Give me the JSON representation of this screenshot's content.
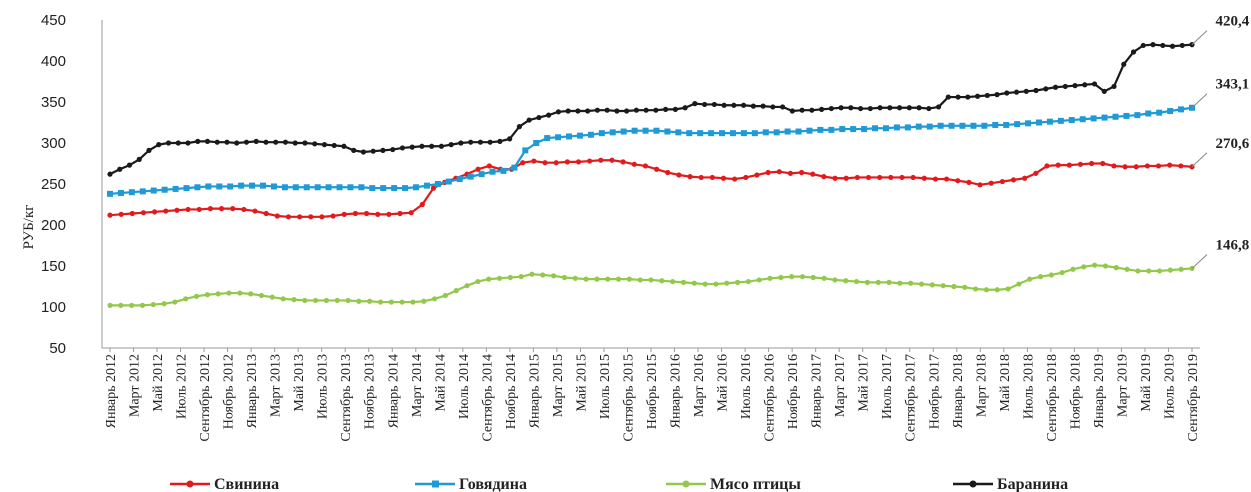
{
  "chart_data": {
    "type": "line",
    "ylabel": "РУБ/кг",
    "ylim": [
      50,
      450
    ],
    "yticks": [
      50,
      100,
      150,
      200,
      250,
      300,
      350,
      400,
      450
    ],
    "grid": false,
    "legend_position": "bottom",
    "x_start": "2012-01",
    "x_end": "2019-09",
    "xtick_labels": [
      "Январь 2012",
      "Март 2012",
      "Май 2012",
      "Июль 2012",
      "Сентябрь 2012",
      "Ноябрь 2012",
      "Январь 2013",
      "Март 2013",
      "Май 2013",
      "Июль 2013",
      "Сентябрь 2013",
      "Ноябрь 2013",
      "Январь 2014",
      "Март 2014",
      "Май 2014",
      "Июль 2014",
      "Сентябрь 2014",
      "Ноябрь 2014",
      "Январь 2015",
      "Март 2015",
      "Май 2015",
      "Июль 2015",
      "Сентябрь 2015",
      "Ноябрь 2015",
      "Январь 2016",
      "Март 2016",
      "Май 2016",
      "Июль 2016",
      "Сентябрь 2016",
      "Ноябрь 2016",
      "Январь 2017",
      "Март 2017",
      "Май 2017",
      "Июль 2017",
      "Сентябрь 2017",
      "Ноябрь 2017",
      "Январь 2018",
      "Март 2018",
      "Май 2018",
      "Июль 2018",
      "Сентябрь 2018",
      "Ноябрь 2018",
      "Январь 2019",
      "Март 2019",
      "Май 2019",
      "Июль 2019",
      "Сентябрь 2019"
    ],
    "series": [
      {
        "name": "Свинина",
        "color": "#e31a1c",
        "marker": "circle",
        "end_label": "270,6 ₽",
        "values": [
          212,
          213,
          214,
          215,
          216,
          217,
          218,
          219,
          219,
          220,
          220,
          220,
          219,
          217,
          214,
          211,
          210,
          210,
          210,
          210,
          211,
          213,
          214,
          214,
          213,
          213,
          214,
          215,
          225,
          245,
          252,
          257,
          262,
          268,
          272,
          268,
          268,
          276,
          278,
          276,
          276,
          277,
          277,
          278,
          279,
          279,
          277,
          274,
          272,
          268,
          264,
          261,
          259,
          258,
          258,
          257,
          256,
          258,
          261,
          264,
          265,
          263,
          264,
          262,
          259,
          257,
          257,
          258,
          258,
          258,
          258,
          258,
          258,
          257,
          256,
          256,
          254,
          252,
          249,
          251,
          253,
          255,
          257,
          263,
          272,
          273,
          273,
          274,
          275,
          275,
          272,
          271,
          271,
          272,
          272,
          273,
          272,
          271
        ]
      },
      {
        "name": "Говядина",
        "color": "#1f9ad6",
        "marker": "square",
        "end_label": "343,1 ₽",
        "values": [
          238,
          239,
          240,
          241,
          242,
          243,
          244,
          245,
          246,
          247,
          247,
          247,
          248,
          248,
          248,
          247,
          246,
          246,
          246,
          246,
          246,
          246,
          246,
          246,
          245,
          245,
          245,
          245,
          246,
          248,
          250,
          253,
          256,
          259,
          262,
          265,
          266,
          270,
          291,
          300,
          306,
          307,
          308,
          309,
          310,
          312,
          313,
          314,
          315,
          315,
          315,
          314,
          313,
          312,
          312,
          312,
          312,
          312,
          312,
          312,
          313,
          313,
          314,
          314,
          315,
          316,
          316,
          317,
          317,
          317,
          318,
          318,
          319,
          319,
          320,
          320,
          321,
          321,
          321,
          321,
          321,
          322,
          322,
          323,
          324,
          325,
          326,
          327,
          328,
          329,
          330,
          331,
          332,
          333,
          334,
          336,
          337,
          339,
          341,
          343
        ]
      },
      {
        "name": "Мясо птицы",
        "color": "#92c94a",
        "marker": "circle",
        "end_label": "146,8 ₽",
        "values": [
          102,
          102,
          102,
          102,
          103,
          104,
          106,
          110,
          113,
          115,
          116,
          117,
          117,
          116,
          114,
          112,
          110,
          109,
          108,
          108,
          108,
          108,
          108,
          107,
          107,
          106,
          106,
          106,
          106,
          107,
          110,
          114,
          120,
          126,
          131,
          134,
          135,
          136,
          137,
          140,
          139,
          138,
          136,
          135,
          134,
          134,
          134,
          134,
          134,
          133,
          133,
          132,
          131,
          130,
          129,
          128,
          128,
          129,
          130,
          131,
          133,
          135,
          136,
          137,
          137,
          136,
          135,
          133,
          132,
          131,
          130,
          130,
          130,
          129,
          129,
          128,
          127,
          126,
          125,
          124,
          122,
          121,
          121,
          122,
          128,
          134,
          137,
          139,
          142,
          146,
          149,
          151,
          150,
          148,
          146,
          144,
          144,
          144,
          145,
          146,
          147
        ]
      },
      {
        "name": "Баранина",
        "color": "#1a1a1a",
        "marker": "circle",
        "end_label": "420,4 ₽",
        "values": [
          262,
          268,
          273,
          280,
          291,
          298,
          300,
          300,
          300,
          302,
          302,
          301,
          301,
          300,
          301,
          302,
          301,
          301,
          301,
          300,
          300,
          299,
          298,
          297,
          296,
          291,
          289,
          290,
          291,
          292,
          294,
          295,
          296,
          296,
          296,
          298,
          300,
          301,
          301,
          301,
          302,
          305,
          320,
          328,
          331,
          334,
          338,
          339,
          339,
          339,
          340,
          340,
          339,
          339,
          340,
          340,
          340,
          341,
          341,
          343,
          348,
          347,
          347,
          346,
          346,
          346,
          345,
          345,
          344,
          344,
          339,
          340,
          340,
          341,
          342,
          343,
          343,
          342,
          342,
          343,
          343,
          343,
          343,
          343,
          342,
          344,
          356,
          356,
          356,
          357,
          358,
          359,
          361,
          362,
          363,
          364,
          366,
          368,
          369,
          370,
          371,
          372,
          363,
          369,
          396,
          411,
          419,
          420,
          419,
          418,
          419,
          420
        ]
      }
    ]
  }
}
